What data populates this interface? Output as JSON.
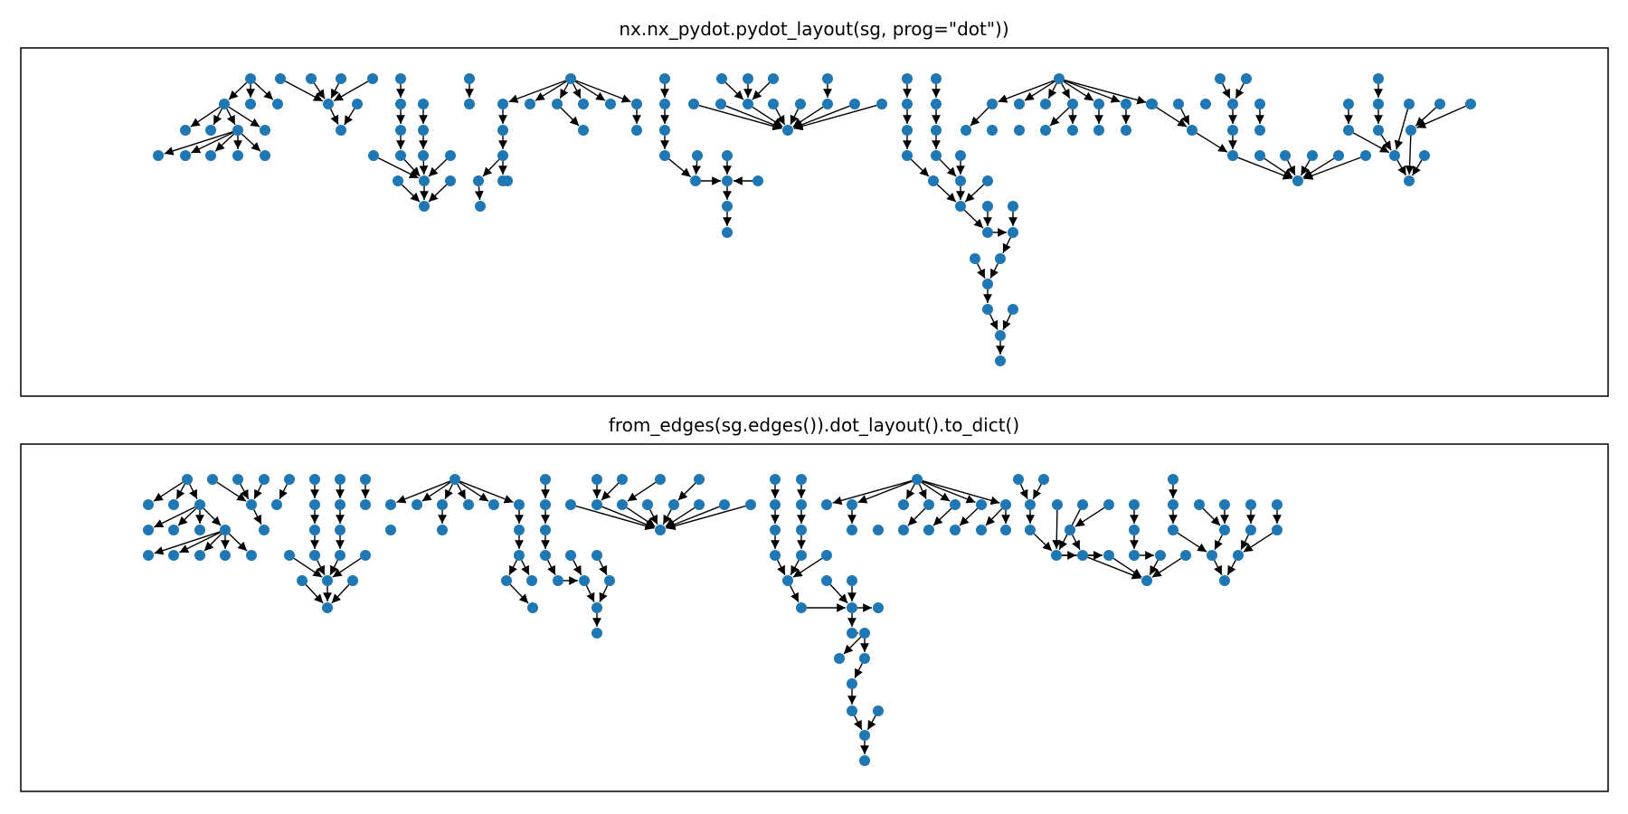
{
  "figure": {
    "panels": [
      {
        "title": "nx.nx_pydot.pydot_layout(sg, prog=\"dot\"))"
      },
      {
        "title": "from_edges(sg.edges()).dot_layout().to_dict()"
      }
    ],
    "node_color": "#1f77b4",
    "edge_color": "#000000",
    "frame_color": "#000000",
    "background": "#ffffff"
  }
}
